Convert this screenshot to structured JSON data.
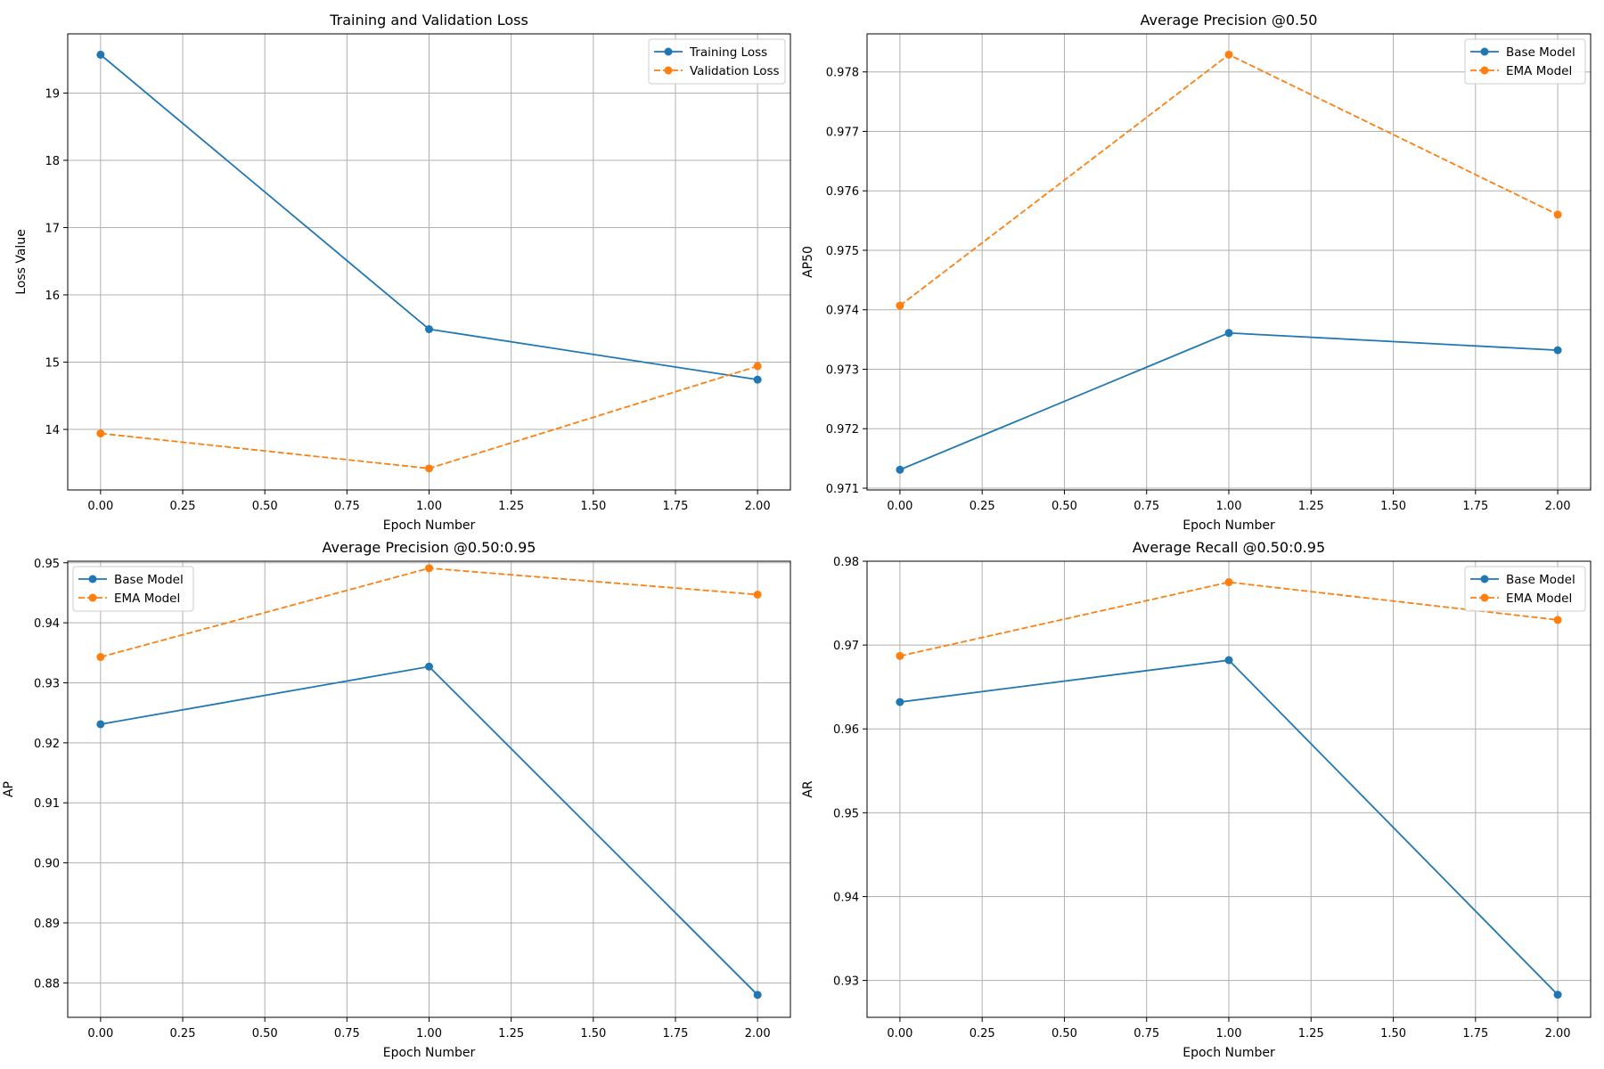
{
  "chart_data": [
    {
      "type": "line",
      "title": "Training and Validation Loss",
      "xlabel": "Epoch Number",
      "ylabel": "Loss Value",
      "x": [
        0,
        1,
        2
      ],
      "xlim": [
        -0.1,
        2.1
      ],
      "ylim": [
        13.1,
        19.88
      ],
      "xticks": [
        "0.00",
        "0.25",
        "0.50",
        "0.75",
        "1.00",
        "1.25",
        "1.50",
        "1.75",
        "2.00"
      ],
      "yticks": [
        "14",
        "15",
        "16",
        "17",
        "18",
        "19"
      ],
      "grid": true,
      "legend": "top-right",
      "series": [
        {
          "name": "Training Loss",
          "values": [
            19.57,
            15.49,
            14.74
          ],
          "color": "#1f77b4",
          "style": "solid"
        },
        {
          "name": "Validation Loss",
          "values": [
            13.94,
            13.42,
            14.94
          ],
          "color": "#ff7f0e",
          "style": "dashed"
        }
      ]
    },
    {
      "type": "line",
      "title": "Average Precision @0.50",
      "xlabel": "Epoch Number",
      "ylabel": "AP50",
      "x": [
        0,
        1,
        2
      ],
      "xlim": [
        -0.1,
        2.1
      ],
      "ylim": [
        0.97097,
        0.97864
      ],
      "xticks": [
        "0.00",
        "0.25",
        "0.50",
        "0.75",
        "1.00",
        "1.25",
        "1.50",
        "1.75",
        "2.00"
      ],
      "yticks": [
        "0.971",
        "0.972",
        "0.973",
        "0.974",
        "0.975",
        "0.976",
        "0.977",
        "0.978"
      ],
      "grid": true,
      "legend": "top-right",
      "series": [
        {
          "name": "Base Model",
          "values": [
            0.97131,
            0.97361,
            0.97332
          ],
          "color": "#1f77b4",
          "style": "solid"
        },
        {
          "name": "EMA Model",
          "values": [
            0.97407,
            0.97829,
            0.9756
          ],
          "color": "#ff7f0e",
          "style": "dashed"
        }
      ]
    },
    {
      "type": "line",
      "title": "Average Precision @0.50:0.95",
      "xlabel": "Epoch Number",
      "ylabel": "AP",
      "x": [
        0,
        1,
        2
      ],
      "xlim": [
        -0.1,
        2.1
      ],
      "ylim": [
        0.87426,
        0.95026
      ],
      "xticks": [
        "0.00",
        "0.25",
        "0.50",
        "0.75",
        "1.00",
        "1.25",
        "1.50",
        "1.75",
        "2.00"
      ],
      "yticks": [
        "0.88",
        "0.89",
        "0.90",
        "0.91",
        "0.92",
        "0.93",
        "0.94",
        "0.95"
      ],
      "grid": true,
      "legend": "top-left",
      "series": [
        {
          "name": "Base Model",
          "values": [
            0.9231,
            0.9327,
            0.878
          ],
          "color": "#1f77b4",
          "style": "solid"
        },
        {
          "name": "EMA Model",
          "values": [
            0.9343,
            0.9491,
            0.9447
          ],
          "color": "#ff7f0e",
          "style": "dashed"
        }
      ]
    },
    {
      "type": "line",
      "title": "Average Recall @0.50:0.95",
      "xlabel": "Epoch Number",
      "ylabel": "AR",
      "x": [
        0,
        1,
        2
      ],
      "xlim": [
        -0.1,
        2.1
      ],
      "ylim": [
        0.9256,
        0.98
      ],
      "xticks": [
        "0.00",
        "0.25",
        "0.50",
        "0.75",
        "1.00",
        "1.25",
        "1.50",
        "1.75",
        "2.00"
      ],
      "yticks": [
        "0.93",
        "0.94",
        "0.95",
        "0.96",
        "0.97",
        "0.98"
      ],
      "grid": true,
      "legend": "top-right",
      "series": [
        {
          "name": "Base Model",
          "values": [
            0.9632,
            0.9682,
            0.9283
          ],
          "color": "#1f77b4",
          "style": "solid"
        },
        {
          "name": "EMA Model",
          "values": [
            0.9687,
            0.9775,
            0.973
          ],
          "color": "#ff7f0e",
          "style": "dashed"
        }
      ]
    }
  ]
}
